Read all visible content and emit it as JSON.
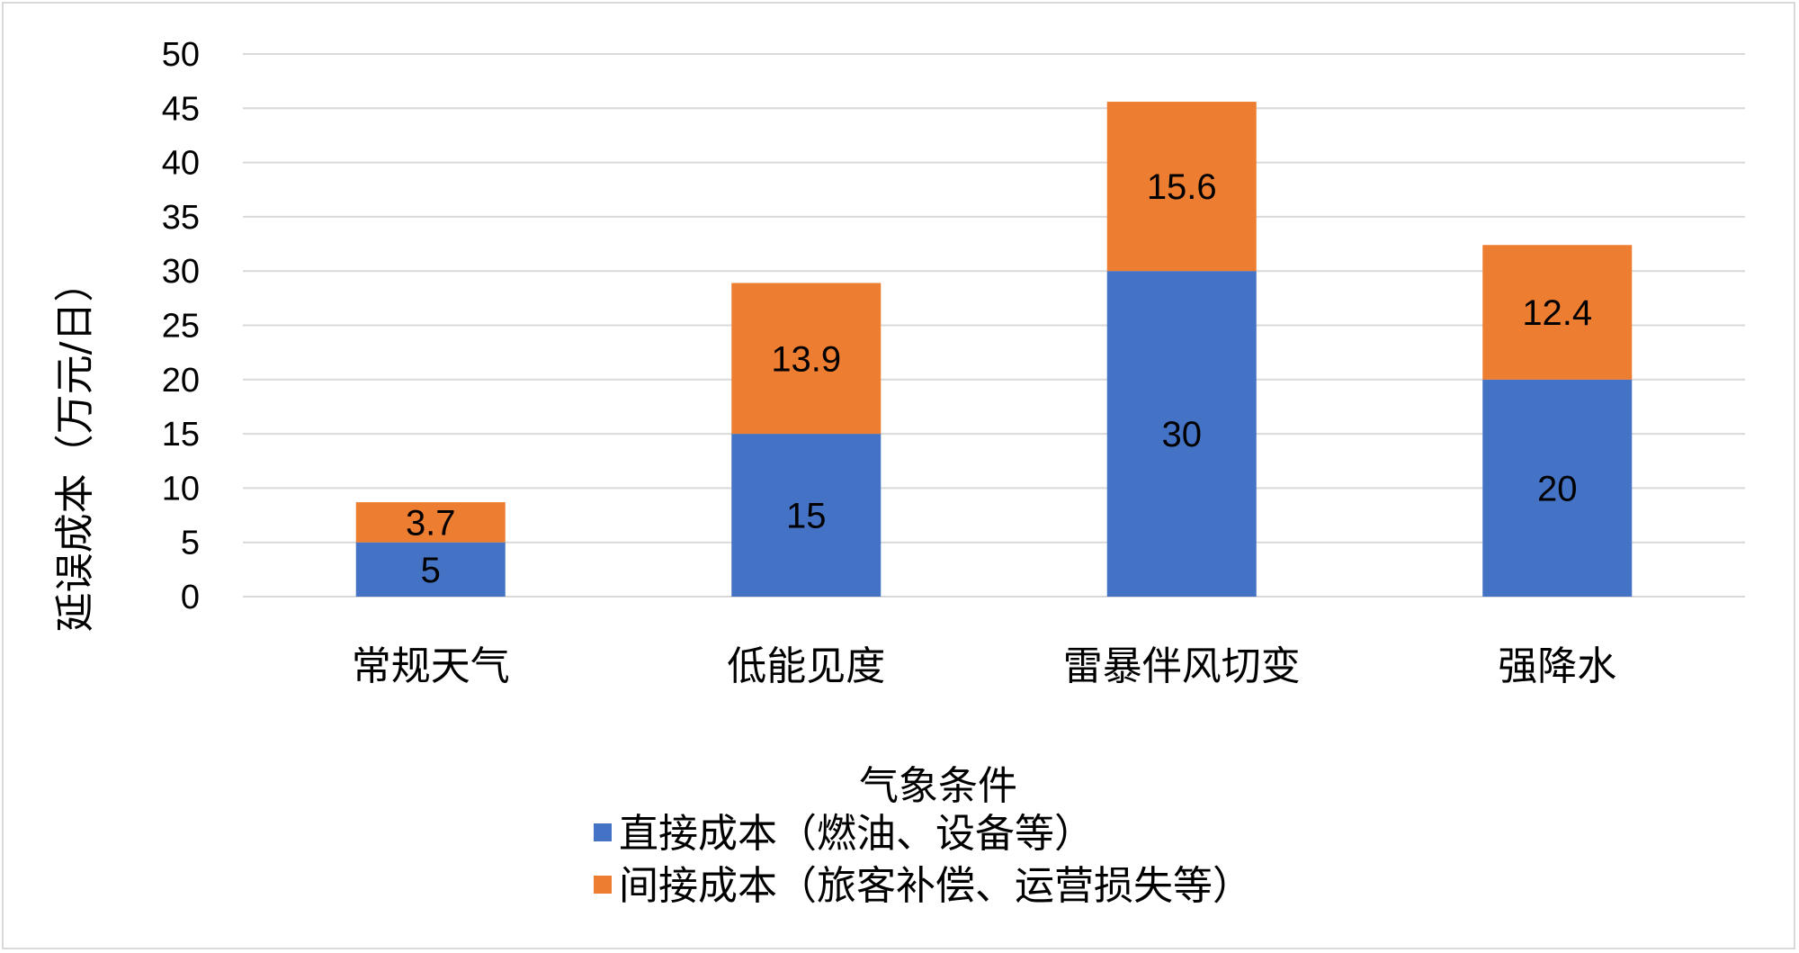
{
  "chart_data": {
    "type": "bar",
    "stacked": true,
    "categories": [
      "常规天气",
      "低能见度",
      "雷暴伴风切变",
      "强降水"
    ],
    "series": [
      {
        "name": "直接成本（燃油、设备等）",
        "values": [
          5,
          15,
          30,
          20
        ],
        "color": "#4472C4"
      },
      {
        "name": "间接成本（旅客补偿、运营损失等）",
        "values": [
          3.7,
          13.9,
          15.6,
          12.4
        ],
        "color": "#ED7D31"
      }
    ],
    "title": "",
    "xlabel": "气象条件",
    "ylabel": "延误成本（万元/日）",
    "ylim": [
      0,
      50
    ],
    "yticks": [
      0,
      5,
      10,
      15,
      20,
      25,
      30,
      35,
      40,
      45,
      50
    ],
    "grid": true,
    "legend_position": "bottom",
    "data_labels": true
  }
}
